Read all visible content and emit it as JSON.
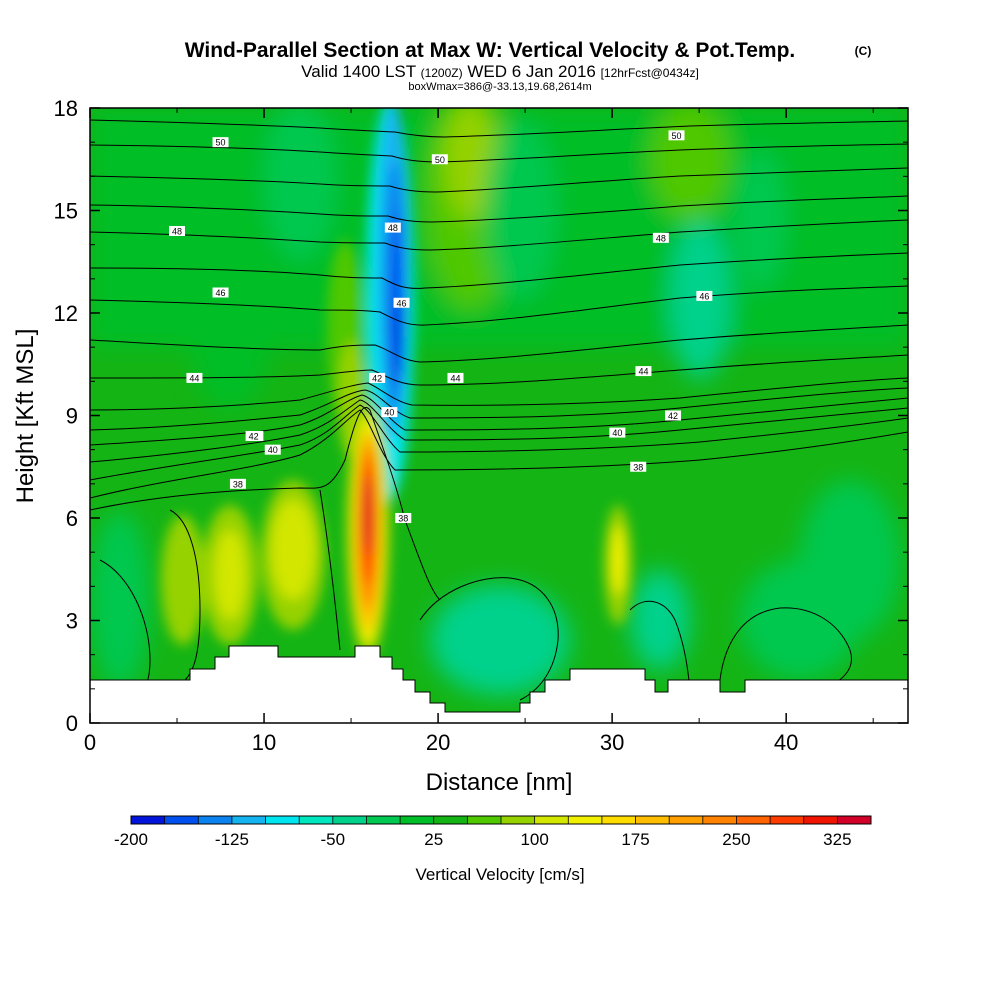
{
  "chart_data": {
    "type": "contour-cross-section",
    "title": "Wind-Parallel Section at Max W: Vertical Velocity & Pot.Temp.",
    "copyright": "(C)",
    "subtitle_valid": "Valid 1400 LST",
    "subtitle_utc": "(1200Z)",
    "subtitle_date": "WED 6 Jan 2016",
    "subtitle_fcst": "[12hrFcst@0434z]",
    "subtitle_box": "boxWmax=386@-33.13,19.68,2614m",
    "xlabel": "Distance [nm]",
    "ylabel": "Height [Kft MSL]",
    "xlim": [
      0,
      47
    ],
    "ylim": [
      0,
      18
    ],
    "xticks": [
      0,
      10,
      20,
      30,
      40
    ],
    "yticks": [
      0,
      3,
      6,
      9,
      12,
      15,
      18
    ],
    "colorbar_label": "Vertical Velocity [cm/s]",
    "colorbar_ticks": [
      "-200",
      "-125",
      "-50",
      "25",
      "100",
      "175",
      "250",
      "325"
    ],
    "colorbar_colors": [
      "#0014dc",
      "#0050f0",
      "#0a82f0",
      "#14b4f0",
      "#00e6f0",
      "#00e6be",
      "#00d28c",
      "#00c850",
      "#00be28",
      "#14b414",
      "#50c800",
      "#96d200",
      "#d2e600",
      "#f0f000",
      "#ffdc00",
      "#ffbe00",
      "#ffa000",
      "#ff8200",
      "#ff6400",
      "#ff3c00",
      "#f01400",
      "#d20028"
    ],
    "theta_contours": [
      {
        "label": "38",
        "height_at_0": 6.2,
        "label_pos": [
          8.5,
          7.0
        ]
      },
      {
        "label": "40",
        "height_at_0": 7.3,
        "label_pos": [
          10.5,
          8.0
        ]
      },
      {
        "label": "42",
        "height_at_0": 8.0,
        "label_pos": [
          9.5,
          8.4
        ]
      },
      {
        "label": "44",
        "height_at_0": 10.0,
        "label_pos": [
          6.0,
          10.1
        ]
      },
      {
        "label": "46",
        "height_at_0": 12.5,
        "label_pos": [
          7.5,
          12.6
        ]
      },
      {
        "label": "48",
        "height_at_0": 14.5,
        "label_pos": [
          5.0,
          14.4
        ]
      },
      {
        "label": "50",
        "height_at_0": 17.0,
        "label_pos": [
          7.5,
          17.0
        ]
      }
    ],
    "features": [
      {
        "name": "updraft-core",
        "x": 16.0,
        "height_range": [
          2.5,
          9.0
        ],
        "max_w": 386
      },
      {
        "name": "downdraft-core",
        "x": 17.3,
        "height_range": [
          9.5,
          18
        ],
        "min_w": -200
      }
    ]
  }
}
